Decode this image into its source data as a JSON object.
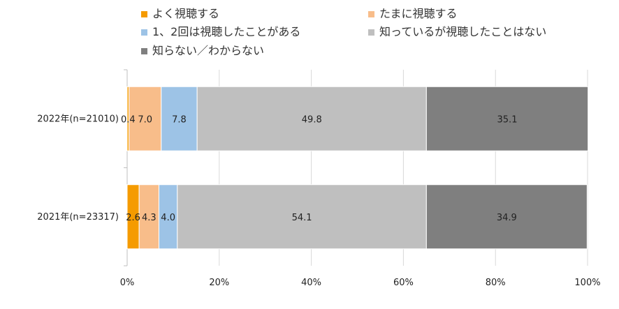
{
  "chart_data": {
    "type": "bar",
    "orientation": "horizontal",
    "stacked": "percent",
    "categories": [
      "2022年(n=21010)",
      "2021年(n=23317)"
    ],
    "series": [
      {
        "name": "よく視聴する",
        "values": [
          0.4,
          2.6
        ],
        "color": "#F59B00"
      },
      {
        "name": "たまに視聴する",
        "values": [
          7.0,
          4.3
        ],
        "color": "#F8BD8A"
      },
      {
        "name": "1、2回は視聴したことがある",
        "values": [
          7.8,
          4.0
        ],
        "color": "#9DC3E6"
      },
      {
        "name": "知っているが視聴したことはない",
        "values": [
          49.8,
          54.1
        ],
        "color": "#BFBFBF"
      },
      {
        "name": "知らない／わからない",
        "values": [
          35.1,
          34.9
        ],
        "color": "#7F7F7F"
      }
    ],
    "xlim": [
      0,
      100
    ],
    "x_ticks": [
      "0%",
      "20%",
      "40%",
      "60%",
      "80%",
      "100%"
    ],
    "grid": true,
    "legend_position": "top"
  }
}
